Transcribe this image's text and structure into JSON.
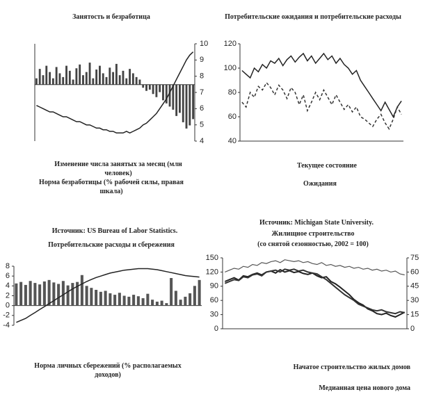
{
  "chart_data": [
    {
      "type": "combo",
      "title": "Занятость и безработица",
      "source": "Источник: US Bureau of Labor Statistics.",
      "ylim": [
        -0.9,
        0.65
      ],
      "y2lim": [
        4,
        10
      ],
      "y2ticks": [
        4,
        5,
        6,
        7,
        8,
        9,
        10
      ],
      "series": [
        {
          "name": "Изменение числа занятых за месяц (млн человек)",
          "kind": "bar",
          "color": "#444444",
          "values": [
            0.1,
            0.25,
            0.15,
            0.3,
            0.2,
            0.1,
            0.28,
            0.18,
            0.12,
            0.3,
            0.22,
            0.08,
            0.26,
            0.32,
            0.15,
            0.2,
            0.35,
            0.1,
            0.24,
            0.3,
            0.18,
            0.12,
            0.27,
            0.2,
            0.33,
            0.15,
            0.22,
            0.1,
            0.25,
            0.18,
            0.12,
            0.08,
            -0.05,
            -0.1,
            -0.08,
            -0.15,
            -0.2,
            -0.12,
            -0.25,
            -0.3,
            -0.35,
            -0.4,
            -0.5,
            -0.45,
            -0.6,
            -0.7,
            -0.65,
            -0.55
          ]
        },
        {
          "name": "Норма безработицы (% рабочей силы, правая шкала)",
          "kind": "line",
          "axis": "y2",
          "color": "#222222",
          "values": [
            6.2,
            6.1,
            6.0,
            5.9,
            5.8,
            5.8,
            5.7,
            5.6,
            5.5,
            5.5,
            5.4,
            5.3,
            5.2,
            5.2,
            5.1,
            5.0,
            5.0,
            4.9,
            4.8,
            4.8,
            4.7,
            4.7,
            4.6,
            4.6,
            4.5,
            4.5,
            4.5,
            4.6,
            4.5,
            4.6,
            4.7,
            4.8,
            5.0,
            5.1,
            5.3,
            5.5,
            5.7,
            6.0,
            6.3,
            6.6,
            7.0,
            7.4,
            7.8,
            8.2,
            8.6,
            9.0,
            9.3,
            9.5
          ]
        }
      ]
    },
    {
      "type": "combo",
      "title": "Потребительские ожидания и потребительские расходы",
      "source": "Источник: Michigan State University.",
      "ylim": [
        40,
        120
      ],
      "yticks": [
        40,
        60,
        80,
        100,
        120
      ],
      "series": [
        {
          "name": "Текущее состояние",
          "kind": "line",
          "color": "#222222",
          "values": [
            98,
            95,
            92,
            100,
            97,
            103,
            100,
            106,
            104,
            108,
            102,
            107,
            110,
            105,
            109,
            112,
            106,
            110,
            104,
            108,
            112,
            107,
            110,
            104,
            108,
            103,
            100,
            95,
            98,
            90,
            85,
            80,
            75,
            70,
            65,
            72,
            66,
            60,
            68,
            73
          ]
        },
        {
          "name": "Ожидания",
          "kind": "line",
          "dashed": true,
          "color": "#333333",
          "values": [
            72,
            68,
            80,
            76,
            85,
            82,
            88,
            84,
            78,
            86,
            82,
            75,
            84,
            80,
            70,
            78,
            65,
            72,
            80,
            74,
            82,
            76,
            70,
            78,
            72,
            66,
            70,
            64,
            68,
            60,
            58,
            55,
            52,
            58,
            62,
            55,
            50,
            58,
            68,
            62
          ]
        }
      ]
    },
    {
      "type": "combo",
      "title": "Потребительские расходы и сбережения",
      "ylim": [
        -4,
        8
      ],
      "yticks": [
        -4,
        -2,
        0,
        2,
        4,
        6,
        8
      ],
      "series": [
        {
          "name": "Норма личных сбережений (% располагаемых доходов)",
          "kind": "bar",
          "color": "#555555",
          "values": [
            4.5,
            4.8,
            4.2,
            5.0,
            4.6,
            4.3,
            4.9,
            5.2,
            4.7,
            4.4,
            5.0,
            4.1,
            4.6,
            4.8,
            6.2,
            4.0,
            3.6,
            3.2,
            2.8,
            3.0,
            2.5,
            2.2,
            2.6,
            2.0,
            1.8,
            2.2,
            1.9,
            1.5,
            2.4,
            1.2,
            0.8,
            1.0,
            0.5,
            5.6,
            3.0,
            1.2,
            1.8,
            2.5,
            4.0,
            5.2
          ]
        },
        {
          "kind": "line",
          "color": "#222222",
          "values": [
            -3.4,
            -3.0,
            -2.6,
            -2.0,
            -1.4,
            -0.8,
            -0.2,
            0.4,
            1.0,
            1.6,
            2.2,
            2.8,
            3.4,
            3.9,
            4.4,
            4.9,
            5.3,
            5.7,
            6.0,
            6.3,
            6.6,
            6.8,
            7.0,
            7.2,
            7.3,
            7.4,
            7.5,
            7.5,
            7.5,
            7.4,
            7.3,
            7.1,
            6.9,
            6.7,
            6.5,
            6.3,
            6.1,
            6.0,
            5.9,
            5.8
          ]
        }
      ]
    },
    {
      "type": "combo",
      "title": "Жилищное строительство",
      "subtitle": "(со снятой сезонностью, 2002 = 100)",
      "ylim": [
        0,
        150
      ],
      "yticks": [
        0,
        30,
        60,
        90,
        120,
        150
      ],
      "y2lim": [
        0,
        75
      ],
      "y2ticks": [
        0,
        15,
        30,
        45,
        60,
        75
      ],
      "series": [
        {
          "kind": "line",
          "axis": "y2",
          "color": "#555555",
          "width": 1.2,
          "values": [
            60,
            62,
            64,
            63,
            66,
            65,
            68,
            67,
            70,
            69,
            71,
            72,
            70,
            73,
            72,
            71,
            72,
            70,
            71,
            69,
            68,
            70,
            67,
            68,
            66,
            67,
            65,
            66,
            64,
            65,
            63,
            64,
            62,
            63,
            61,
            62,
            60,
            61,
            58,
            57
          ]
        },
        {
          "name": "Начатое строительство жилых домов",
          "kind": "line",
          "color": "#222222",
          "width": 2,
          "values": [
            100,
            104,
            108,
            103,
            112,
            110,
            115,
            118,
            114,
            120,
            122,
            118,
            125,
            120,
            123,
            119,
            121,
            117,
            115,
            118,
            112,
            108,
            110,
            100,
            95,
            88,
            80,
            72,
            62,
            55,
            50,
            42,
            38,
            32,
            30,
            33,
            28,
            25,
            30,
            35
          ]
        },
        {
          "name": "Медианная цена нового дома",
          "kind": "line",
          "axis": "y2",
          "color": "#333333",
          "width": 2,
          "values": [
            48,
            50,
            52,
            51,
            55,
            54,
            57,
            58,
            56,
            60,
            61,
            62,
            60,
            63,
            62,
            63,
            61,
            62,
            60,
            59,
            58,
            55,
            52,
            48,
            44,
            40,
            36,
            33,
            30,
            26,
            24,
            22,
            20,
            19,
            20,
            18,
            17,
            16,
            18,
            17
          ]
        }
      ]
    }
  ]
}
